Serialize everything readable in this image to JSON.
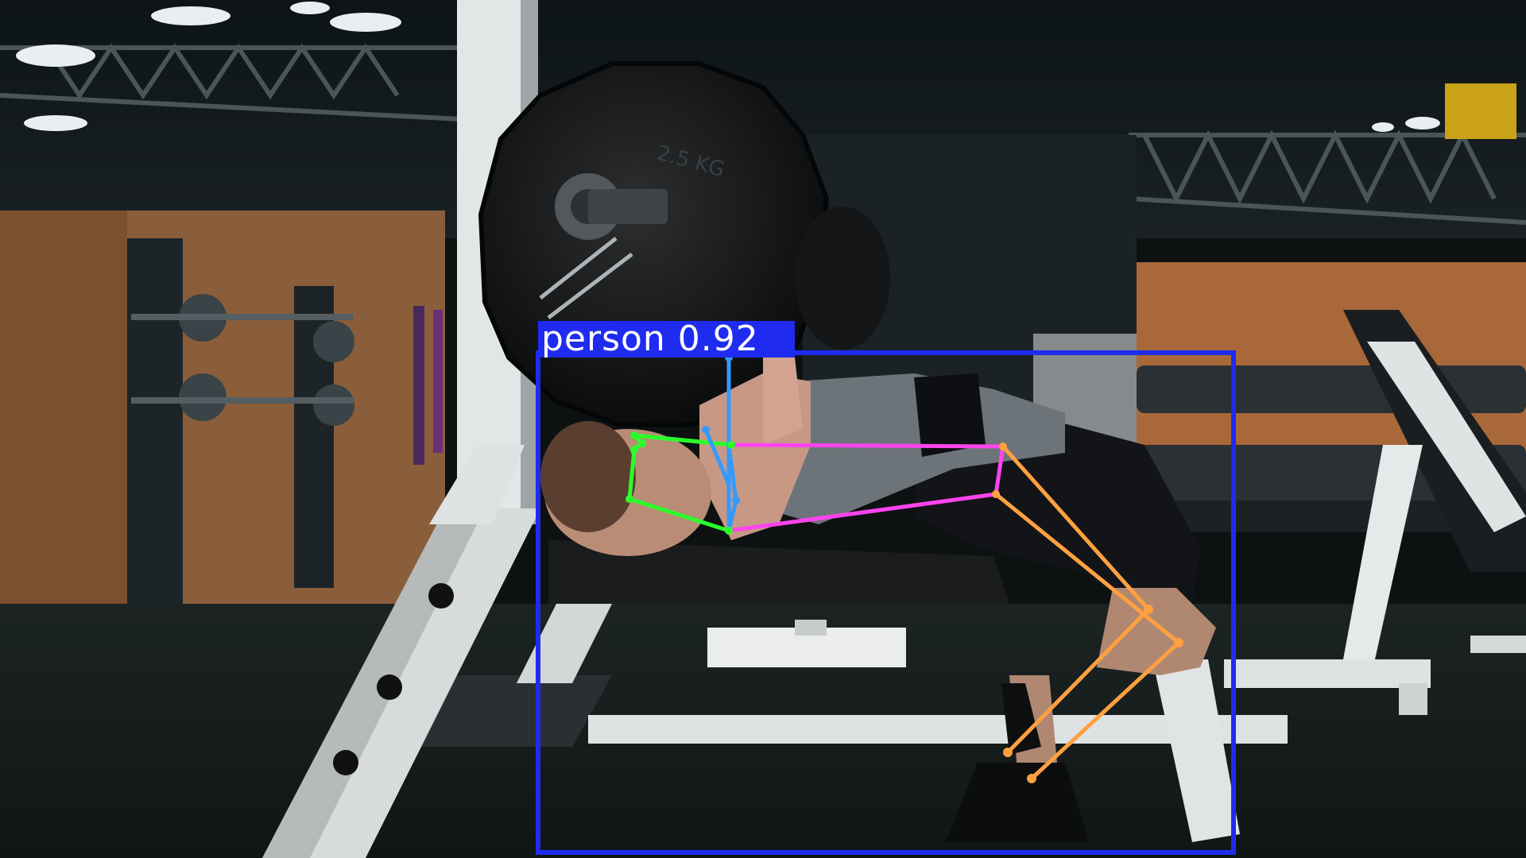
{
  "detection": {
    "class_name": "person",
    "confidence": "0.92",
    "label": "person 0.92",
    "box_color": "#1f2cf0",
    "label_text_color": "#ffffff"
  },
  "skeleton_colors": {
    "head": "#2bff2b",
    "arms": "#3399ff",
    "torso": "#ff44ee",
    "legs": "#ffa040"
  },
  "scene": {
    "plate_lettering": "2.5 KG"
  }
}
